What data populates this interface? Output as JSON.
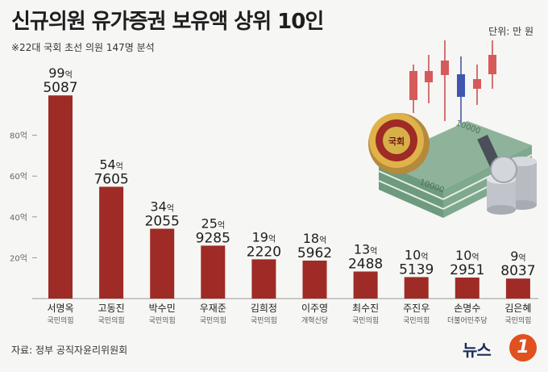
{
  "title": "신규의원 유가증권 보유액 상위 10인",
  "subtitle": "※22대 국회 초선 의원 147명 분석",
  "unit_note": "단위: 만 원",
  "source": "자료: 정부 공직자윤리위원회",
  "logo": {
    "text": "뉴스",
    "mark": "1"
  },
  "colors": {
    "bar": "#9e2b25",
    "baseline": "#b8b8b4"
  },
  "chart_data": {
    "type": "bar",
    "unit": "만 원",
    "y_tick_values": [
      20,
      40,
      60,
      80
    ],
    "y_tick_labels": [
      "20억",
      "40억",
      "60억",
      "80억"
    ],
    "ylim": [
      0,
      110
    ],
    "grid": false,
    "categories": [
      "서명옥",
      "고동진",
      "박수민",
      "우재준",
      "김희정",
      "이주영",
      "최수진",
      "주진우",
      "손명수",
      "김은혜"
    ],
    "parties": [
      "국민의힘",
      "국민의힘",
      "국민의힘",
      "국민의힘",
      "국민의힘",
      "개혁신당",
      "국민의힘",
      "국민의힘",
      "더불어민주당",
      "국민의힘"
    ],
    "values": [
      995087,
      547605,
      342055,
      259285,
      192220,
      185962,
      132488,
      105139,
      102951,
      98037
    ],
    "label_eok": [
      "99",
      "54",
      "34",
      "25",
      "19",
      "18",
      "13",
      "10",
      "10",
      "9"
    ],
    "label_man": [
      "5087",
      "7605",
      "2055",
      "9285",
      "2220",
      "5962",
      "2488",
      "5139",
      "2951",
      "8037"
    ],
    "eok_suffix": "억",
    "illustration_badge": "국회",
    "illustration_money": "10000"
  }
}
